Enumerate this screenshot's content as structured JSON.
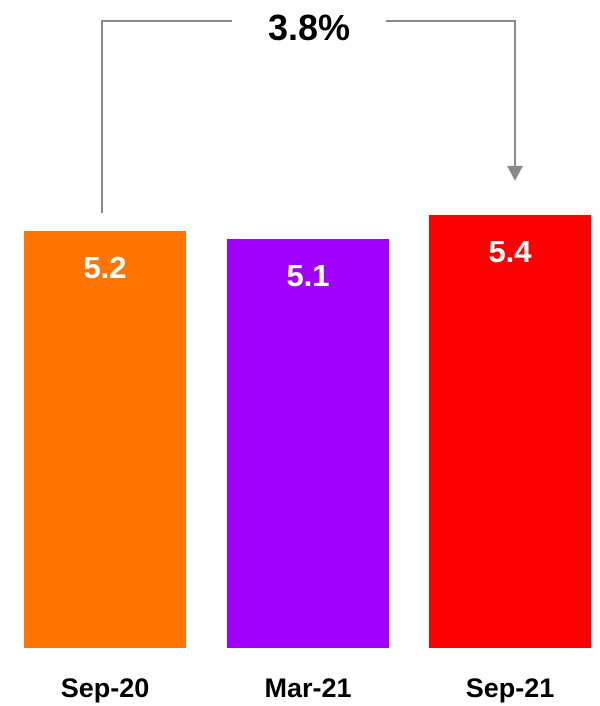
{
  "chart_data": {
    "type": "bar",
    "categories": [
      "Sep-20",
      "Mar-21",
      "Sep-21"
    ],
    "values": [
      5.2,
      5.1,
      5.4
    ],
    "value_labels": [
      "5.2",
      "5.1",
      "5.4"
    ],
    "colors": [
      "#ff7500",
      "#a100ff",
      "#ff0000"
    ],
    "title": "",
    "xlabel": "",
    "ylabel": "",
    "grid": false,
    "legend": "none",
    "annotation": {
      "text": "3.8%",
      "from_category": "Sep-20",
      "to_category": "Sep-21",
      "connector_color": "#8a8a8a"
    }
  }
}
